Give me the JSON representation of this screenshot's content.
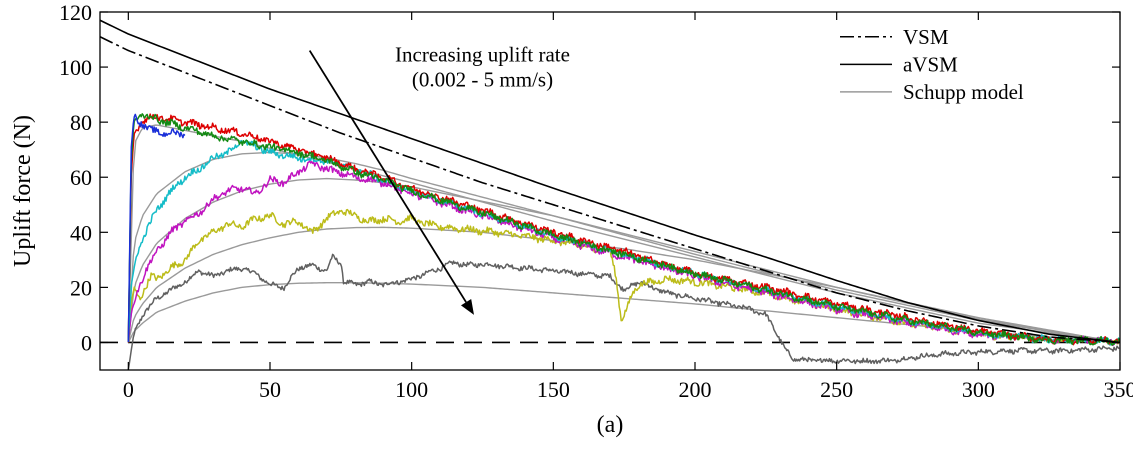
{
  "chart_data": {
    "type": "line",
    "title": "",
    "xlabel": "",
    "ylabel": "Uplift force (N)",
    "caption": "(a)",
    "xlim": [
      -10,
      350
    ],
    "ylim": [
      -10,
      120
    ],
    "xticks": [
      0,
      50,
      100,
      150,
      200,
      250,
      300,
      350
    ],
    "yticks": [
      0,
      20,
      40,
      60,
      80,
      100,
      120
    ],
    "grid": false,
    "legend": {
      "placement": "top-right",
      "entries": [
        {
          "label": "VSM",
          "style": "dashdot",
          "color": "#000000"
        },
        {
          "label": "aVSM",
          "style": "solid",
          "color": "#000000"
        },
        {
          "label": "Schupp model",
          "style": "solid",
          "color": "#9a9a9a"
        }
      ]
    },
    "annotation": {
      "line1": "Increasing uplift rate",
      "line2": "(0.002 - 5 mm/s)",
      "arrow_from": [
        64,
        106
      ],
      "arrow_to": [
        122,
        10
      ]
    },
    "zero_line": {
      "y": 0,
      "style": "dashed",
      "color": "#000000"
    },
    "model_series": [
      {
        "name": "VSM",
        "color": "#000000",
        "style": "dashdot",
        "x": [
          -10,
          0,
          25,
          50,
          75,
          100,
          125,
          150,
          175,
          200,
          225,
          250,
          275,
          300,
          325,
          350
        ],
        "y": [
          111,
          106,
          96,
          86,
          76,
          67,
          58,
          50,
          42,
          34,
          26,
          18,
          11.5,
          6,
          2,
          0
        ]
      },
      {
        "name": "aVSM",
        "color": "#000000",
        "style": "solid",
        "x": [
          -10,
          0,
          25,
          50,
          75,
          100,
          125,
          150,
          175,
          200,
          225,
          250,
          275,
          300,
          325,
          350
        ],
        "y": [
          117,
          112,
          102,
          92,
          83,
          74,
          65,
          56,
          47.5,
          39,
          31,
          22.5,
          14.5,
          8,
          3,
          0
        ]
      }
    ],
    "schupp_series": [
      {
        "name": "Schupp model",
        "color": "#9a9a9a",
        "x": [
          0,
          2,
          5,
          10,
          20,
          30,
          40,
          50,
          60,
          70,
          80,
          90,
          100,
          150,
          200,
          250,
          300,
          350
        ],
        "y": [
          0,
          72,
          78,
          79,
          77,
          75,
          73,
          70.5,
          68,
          65.5,
          63,
          60.5,
          58,
          44,
          31,
          18,
          7,
          0
        ]
      },
      {
        "name": "",
        "color": "#9a9a9a",
        "x": [
          0,
          2,
          5,
          10,
          20,
          30,
          40,
          50,
          60,
          70,
          80,
          90,
          100,
          150,
          200,
          250,
          300,
          350
        ],
        "y": [
          0,
          36,
          46,
          54,
          62,
          66.5,
          68.5,
          69,
          68.5,
          67,
          65,
          62.5,
          59.5,
          46,
          32,
          19,
          8,
          0
        ]
      },
      {
        "name": "",
        "color": "#9a9a9a",
        "x": [
          0,
          2,
          5,
          10,
          20,
          30,
          40,
          50,
          60,
          70,
          80,
          90,
          100,
          150,
          200,
          250,
          300,
          350
        ],
        "y": [
          0,
          20,
          28,
          36,
          45,
          51,
          55,
          57.5,
          59,
          59.5,
          59,
          58,
          56.5,
          46,
          33,
          20,
          8.5,
          0
        ]
      },
      {
        "name": "",
        "color": "#9a9a9a",
        "x": [
          0,
          2,
          5,
          10,
          20,
          30,
          40,
          50,
          60,
          70,
          80,
          90,
          100,
          125,
          150,
          175,
          200,
          250,
          300,
          350
        ],
        "y": [
          0,
          9,
          14,
          20,
          27,
          32,
          35.5,
          38,
          40,
          41.2,
          41.7,
          41.8,
          41.5,
          40,
          37,
          34,
          30,
          20,
          9,
          0
        ]
      },
      {
        "name": "",
        "color": "#9a9a9a",
        "x": [
          0,
          2,
          5,
          10,
          20,
          30,
          40,
          50,
          60,
          70,
          80,
          90,
          100,
          125,
          150,
          175,
          200,
          250,
          300,
          350
        ],
        "y": [
          0,
          4,
          7,
          11,
          15,
          18,
          20,
          21,
          21.5,
          21.7,
          21.7,
          21.5,
          21.2,
          20,
          18,
          16,
          14,
          9,
          4,
          0
        ]
      }
    ],
    "measured_series": [
      {
        "name": "",
        "color": "#dd0000",
        "x": [
          0,
          1,
          2,
          5,
          10,
          20,
          30,
          40,
          50,
          60,
          70,
          80,
          90,
          100,
          125,
          150,
          175,
          200,
          225,
          250,
          275,
          300,
          325,
          350
        ],
        "y": [
          0,
          60,
          75,
          81,
          82,
          80,
          78,
          76,
          73,
          70,
          67,
          63,
          60,
          56,
          48,
          40,
          33,
          25,
          20,
          14,
          9,
          4,
          1,
          0.5
        ]
      },
      {
        "name": "",
        "color": "#1a2fd8",
        "x": [
          0,
          1,
          2,
          4,
          8,
          12,
          16,
          20
        ],
        "y": [
          0,
          70,
          82,
          80,
          77,
          76,
          76,
          76
        ]
      },
      {
        "name": "",
        "color": "#138a13",
        "x": [
          0,
          1,
          2,
          5,
          10,
          20,
          30,
          40,
          50,
          60,
          70,
          80,
          90,
          100,
          125,
          150,
          175,
          200,
          225,
          250,
          275,
          300,
          325,
          350
        ],
        "y": [
          0,
          65,
          80,
          83,
          81,
          78,
          75,
          73,
          71,
          69,
          66,
          62,
          59,
          55,
          47,
          39,
          32,
          25,
          19,
          13,
          8,
          3.5,
          1,
          0.5
        ]
      },
      {
        "name": "",
        "color": "#14bcc8",
        "x": [
          0,
          1,
          3,
          6,
          10,
          15,
          20,
          25,
          30,
          35,
          40,
          45,
          50,
          60,
          70,
          80,
          90,
          100,
          125,
          150,
          175,
          200,
          225,
          250,
          275,
          300,
          325,
          350
        ],
        "y": [
          0,
          20,
          32,
          40,
          48,
          55,
          60,
          63,
          67,
          69,
          73,
          71,
          69,
          67,
          66,
          63,
          59,
          55,
          47,
          39,
          32,
          25,
          19,
          13,
          8,
          3.5,
          1,
          0.5
        ]
      },
      {
        "name": "",
        "color": "#c014c0",
        "x": [
          0,
          1,
          3,
          6,
          10,
          15,
          20,
          25,
          30,
          35,
          40,
          45,
          50,
          55,
          60,
          65,
          70,
          80,
          90,
          100,
          125,
          150,
          175,
          200,
          225,
          250,
          275,
          300,
          325,
          350
        ],
        "y": [
          0,
          10,
          18,
          26,
          33,
          40,
          44,
          47,
          52,
          55,
          56,
          54,
          59,
          58,
          62,
          65,
          63,
          60,
          58,
          54,
          46,
          38,
          31,
          24,
          18,
          12,
          7,
          3,
          1,
          0.5
        ]
      },
      {
        "name": "",
        "color": "#bcbc1a",
        "x": [
          0,
          1,
          2,
          4,
          6,
          8,
          10,
          15,
          20,
          25,
          30,
          35,
          40,
          45,
          50,
          55,
          60,
          65,
          70,
          75,
          80,
          85,
          90,
          95,
          100,
          105,
          110,
          120,
          130,
          140,
          150,
          160,
          170,
          172,
          174,
          176,
          178,
          180,
          190,
          200,
          225,
          250,
          275,
          300,
          325,
          350
        ],
        "y": [
          0,
          14,
          19,
          16,
          20,
          24,
          23,
          27,
          30,
          37,
          40,
          43,
          42,
          45,
          46,
          43,
          44,
          40,
          45,
          48,
          46,
          44,
          45,
          44,
          45,
          43,
          42,
          41,
          40,
          38.5,
          37,
          35,
          33,
          25,
          8,
          12,
          18,
          21,
          23,
          22,
          18,
          12,
          7,
          3,
          1,
          0.5
        ]
      },
      {
        "name": "",
        "color": "#606060",
        "x": [
          0,
          2,
          5,
          10,
          15,
          20,
          25,
          30,
          35,
          40,
          45,
          50,
          55,
          60,
          65,
          70,
          72,
          75,
          76,
          80,
          85,
          90,
          95,
          100,
          105,
          110,
          115,
          120,
          125,
          130,
          140,
          150,
          160,
          170,
          175,
          180,
          190,
          200,
          210,
          215,
          220,
          225,
          228,
          232,
          235,
          240,
          250,
          260,
          270,
          280,
          290,
          300,
          310,
          320,
          330,
          340,
          350
        ],
        "y": [
          -10,
          3,
          10,
          16,
          19,
          22,
          26,
          24,
          26,
          27,
          25,
          21,
          20,
          27,
          28,
          26,
          31,
          29,
          22,
          21,
          22,
          21,
          22,
          23,
          25,
          27,
          29,
          28,
          28.5,
          28,
          27,
          26,
          25,
          24,
          19,
          22,
          18,
          16,
          14,
          13,
          12,
          10,
          5,
          -3,
          -6,
          -6.5,
          -6.5,
          -6.8,
          -6.5,
          -5,
          -4,
          -3.5,
          -3,
          -3,
          -3,
          -2.5,
          -2
        ]
      }
    ]
  }
}
